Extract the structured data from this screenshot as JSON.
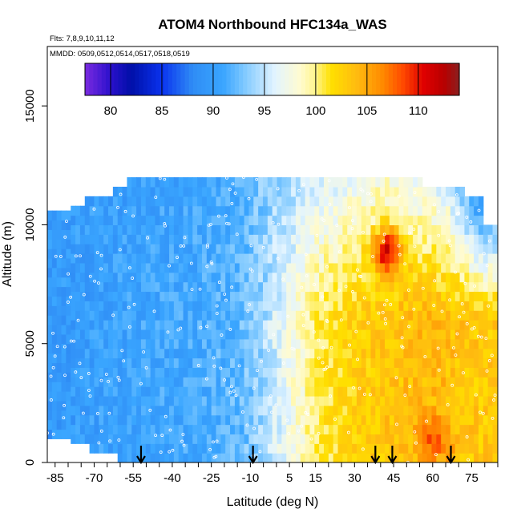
{
  "chart_data": {
    "type": "heatmap",
    "title": "ATOM4 Northbound HFC134a_WAS",
    "flights_note": "Flts: 7,8,9,10,11,12",
    "dates_note": "MMDD: 0509,0512,0514,0517,0518,0519",
    "xlabel": "Latitude (deg N)",
    "ylabel": "Altitude (m)",
    "xlim": [
      -88,
      85
    ],
    "ylim": [
      0,
      17500
    ],
    "x_ticks": [
      -85,
      -70,
      -55,
      -40,
      -25,
      -10,
      5,
      15,
      30,
      45,
      60,
      75
    ],
    "x_tick_labels": [
      "-85",
      "-70",
      "-55",
      "-40",
      "-25",
      "-10",
      "5",
      "15",
      "30",
      "45",
      "60",
      "75"
    ],
    "y_ticks": [
      0,
      5000,
      10000,
      15000
    ],
    "y_tick_labels": [
      "0",
      "5000",
      "10000",
      "15000"
    ],
    "colorbar": {
      "min": 77.5,
      "max": 114,
      "ticks": [
        80,
        85,
        90,
        95,
        100,
        105,
        110
      ],
      "tick_labels": [
        "80",
        "85",
        "90",
        "95",
        "100",
        "105",
        "110"
      ],
      "colors": [
        {
          "v": 77.5,
          "c": "#7a2be0"
        },
        {
          "v": 80,
          "c": "#2a10cc"
        },
        {
          "v": 82,
          "c": "#000fa8"
        },
        {
          "v": 85,
          "c": "#0a33ee"
        },
        {
          "v": 88,
          "c": "#2f8cf5"
        },
        {
          "v": 91,
          "c": "#3aa6ff"
        },
        {
          "v": 93.5,
          "c": "#8fd0ff"
        },
        {
          "v": 96,
          "c": "#e2f4ff"
        },
        {
          "v": 98.5,
          "c": "#fffbd0"
        },
        {
          "v": 100,
          "c": "#fff48a"
        },
        {
          "v": 101.5,
          "c": "#ffe000"
        },
        {
          "v": 104,
          "c": "#ffbb10"
        },
        {
          "v": 106.5,
          "c": "#ff8a00"
        },
        {
          "v": 108.5,
          "c": "#ff4a00"
        },
        {
          "v": 110.5,
          "c": "#e00000"
        },
        {
          "v": 112.5,
          "c": "#b80000"
        },
        {
          "v": 114,
          "c": "#8b1f1f"
        }
      ]
    },
    "profile_latitudes": [
      -52,
      -9,
      38,
      44.5,
      67
    ],
    "cross_section": {
      "lat_range": [
        -88,
        84
      ],
      "alt_range": [
        0,
        12000
      ],
      "hemisphere_means": [
        {
          "lat": -85,
          "value": 89.5
        },
        {
          "lat": -60,
          "value": 90.5
        },
        {
          "lat": -35,
          "value": 91
        },
        {
          "lat": -15,
          "value": 92
        },
        {
          "lat": -5,
          "value": 94.5
        },
        {
          "lat": 5,
          "value": 97.5
        },
        {
          "lat": 15,
          "value": 100.5
        },
        {
          "lat": 30,
          "value": 102.5
        },
        {
          "lat": 45,
          "value": 103.5
        },
        {
          "lat": 60,
          "value": 104
        },
        {
          "lat": 75,
          "value": 103
        }
      ],
      "high_altitude_means": [
        {
          "lat": -60,
          "value": 90
        },
        {
          "lat": -20,
          "value": 91
        },
        {
          "lat": 10,
          "value": 95
        },
        {
          "lat": 40,
          "value": 98
        },
        {
          "lat": 65,
          "value": 95
        },
        {
          "lat": 78,
          "value": 86
        }
      ],
      "local_maxima": [
        {
          "lat": 42,
          "alt": 8700,
          "value": 111
        },
        {
          "lat": 60,
          "alt": 800,
          "value": 108
        }
      ]
    }
  }
}
